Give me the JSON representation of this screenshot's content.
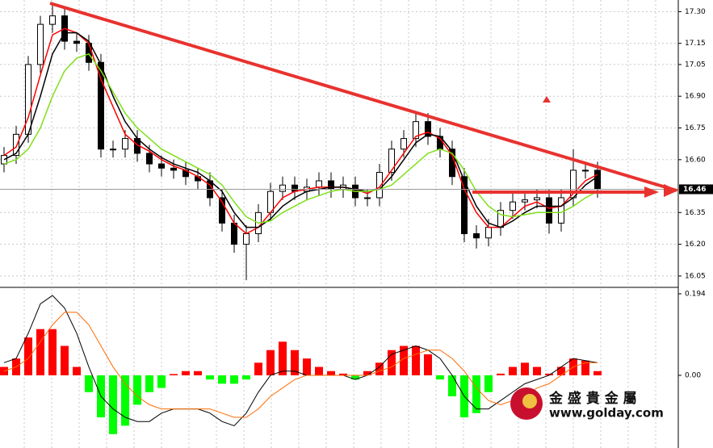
{
  "chart_data": [
    {
      "type": "candlestick",
      "open": [
        16.58,
        16.62,
        16.72,
        17.05,
        17.24,
        17.28,
        17.16,
        17.15,
        17.06,
        16.65,
        16.65,
        16.7,
        16.63,
        16.58,
        16.56,
        16.55,
        16.52,
        16.5,
        16.42,
        16.3,
        16.2,
        16.25,
        16.35,
        16.45,
        16.48,
        16.45,
        16.47,
        16.5,
        16.46,
        16.48,
        16.42,
        16.42,
        16.54,
        16.65,
        16.7,
        16.78,
        16.71,
        16.65,
        16.52,
        16.25,
        16.23,
        16.28,
        16.36,
        16.4,
        16.41,
        16.42,
        16.3,
        16.42,
        16.55,
        16.55
      ],
      "high": [
        16.66,
        16.76,
        17.09,
        17.28,
        17.33,
        17.32,
        17.2,
        17.19,
        17.1,
        16.69,
        16.74,
        16.74,
        16.67,
        16.62,
        16.6,
        16.59,
        16.56,
        16.54,
        16.46,
        16.34,
        16.29,
        16.39,
        16.49,
        16.52,
        16.52,
        16.51,
        16.54,
        16.54,
        16.52,
        16.52,
        16.46,
        16.58,
        16.69,
        16.74,
        16.82,
        16.82,
        16.75,
        16.69,
        16.56,
        16.29,
        16.32,
        16.4,
        16.44,
        16.45,
        16.46,
        16.46,
        16.46,
        16.65,
        16.59,
        16.59
      ],
      "low": [
        16.54,
        16.58,
        16.68,
        17.01,
        17.2,
        17.12,
        17.11,
        17.02,
        16.61,
        16.61,
        16.61,
        16.59,
        16.54,
        16.52,
        16.51,
        16.48,
        16.46,
        16.38,
        16.26,
        16.16,
        16.03,
        16.21,
        16.31,
        16.41,
        16.41,
        16.41,
        16.43,
        16.42,
        16.42,
        16.38,
        16.38,
        16.38,
        16.5,
        16.61,
        16.66,
        16.67,
        16.61,
        16.48,
        16.21,
        16.18,
        16.19,
        16.24,
        16.32,
        16.36,
        16.37,
        16.25,
        16.26,
        16.38,
        16.51,
        16.42
      ],
      "close": [
        16.62,
        16.72,
        17.05,
        17.24,
        17.28,
        17.16,
        17.15,
        17.06,
        16.65,
        16.65,
        16.7,
        16.63,
        16.58,
        16.56,
        16.55,
        16.52,
        16.5,
        16.42,
        16.3,
        16.2,
        16.25,
        16.35,
        16.45,
        16.48,
        16.45,
        16.47,
        16.5,
        16.46,
        16.48,
        16.42,
        16.42,
        16.54,
        16.65,
        16.7,
        16.78,
        16.71,
        16.65,
        16.52,
        16.25,
        16.23,
        16.28,
        16.36,
        16.4,
        16.41,
        16.42,
        16.3,
        16.42,
        16.55,
        16.55,
        16.46
      ],
      "up_color": "#ffffff",
      "down_color": "#000000",
      "series": [
        {
          "color": "#ff0000",
          "values": [
            16.62,
            16.66,
            16.8,
            17.0,
            17.19,
            17.22,
            17.2,
            17.15,
            16.98,
            16.85,
            16.72,
            16.67,
            16.64,
            16.6,
            16.57,
            16.55,
            16.52,
            16.48,
            16.4,
            16.3,
            16.25,
            16.28,
            16.35,
            16.42,
            16.45,
            16.46,
            16.47,
            16.47,
            16.47,
            16.46,
            16.44,
            16.47,
            16.55,
            16.63,
            16.71,
            16.73,
            16.7,
            16.62,
            16.46,
            16.35,
            16.28,
            16.28,
            16.33,
            16.38,
            16.4,
            16.37,
            16.38,
            16.44,
            16.5,
            16.53
          ]
        },
        {
          "color": "#000000",
          "values": [
            16.6,
            16.63,
            16.72,
            16.9,
            17.1,
            17.2,
            17.2,
            17.16,
            17.05,
            16.9,
            16.78,
            16.7,
            16.65,
            16.61,
            16.58,
            16.56,
            16.54,
            16.5,
            16.45,
            16.35,
            16.28,
            16.28,
            16.32,
            16.38,
            16.42,
            16.45,
            16.46,
            16.47,
            16.47,
            16.46,
            16.45,
            16.46,
            16.52,
            16.6,
            16.68,
            16.72,
            16.71,
            16.64,
            16.5,
            16.38,
            16.3,
            16.28,
            16.31,
            16.35,
            16.38,
            16.38,
            16.38,
            16.42,
            16.48,
            16.52
          ]
        },
        {
          "color": "#7fe01a",
          "values": [
            16.58,
            16.6,
            16.65,
            16.75,
            16.9,
            17.02,
            17.08,
            17.1,
            17.02,
            16.92,
            16.82,
            16.75,
            16.7,
            16.65,
            16.62,
            16.59,
            16.56,
            16.53,
            16.48,
            16.4,
            16.33,
            16.3,
            16.31,
            16.35,
            16.38,
            16.41,
            16.43,
            16.45,
            16.46,
            16.45,
            16.45,
            16.46,
            16.48,
            16.53,
            16.58,
            16.63,
            16.65,
            16.63,
            16.55,
            16.45,
            16.38,
            16.34,
            16.33,
            16.34,
            16.35,
            16.35,
            16.35,
            16.38,
            16.42,
            16.45
          ]
        }
      ],
      "current_price": 16.46,
      "ylim": [
        16.0,
        17.355
      ],
      "yticks": [
        {
          "value": 17.3,
          "label": "17.30"
        },
        17.15,
        17.05,
        {
          "value": 16.9,
          "label": "16.90"
        },
        16.75,
        {
          "value": 16.6,
          "label": "16.60"
        },
        16.35,
        {
          "value": 16.2,
          "label": "16.20"
        },
        16.05
      ],
      "grid": true
    },
    {
      "type": "macd",
      "histogram": {
        "positive_color": "#ff0000",
        "negative_color": "#00ff00",
        "values": [
          0.02,
          0.04,
          0.09,
          0.11,
          0.11,
          0.07,
          0.02,
          -0.04,
          -0.1,
          -0.14,
          -0.12,
          -0.07,
          -0.04,
          -0.03,
          0.003,
          0.01,
          0.01,
          -0.01,
          -0.02,
          -0.02,
          -0.01,
          0.03,
          0.06,
          0.08,
          0.06,
          0.04,
          0.02,
          0.01,
          0.004,
          -0.01,
          0.01,
          0.03,
          0.06,
          0.07,
          0.07,
          0.05,
          -0.01,
          -0.05,
          -0.1,
          -0.09,
          -0.04,
          0.004,
          0.02,
          0.03,
          0.02,
          0.004,
          0.02,
          0.04,
          0.035,
          0.01
        ]
      },
      "series": [
        {
          "color": "#000000",
          "values": [
            0.03,
            0.04,
            0.1,
            0.17,
            0.19,
            0.16,
            0.1,
            0.02,
            -0.05,
            -0.08,
            -0.1,
            -0.11,
            -0.11,
            -0.09,
            -0.08,
            -0.08,
            -0.08,
            -0.09,
            -0.11,
            -0.12,
            -0.09,
            -0.04,
            0.0,
            0.01,
            0.01,
            0.0,
            0.0,
            0.0,
            0.0,
            -0.01,
            0.0,
            0.02,
            0.05,
            0.06,
            0.07,
            0.06,
            0.04,
            0.0,
            -0.05,
            -0.08,
            -0.08,
            -0.06,
            -0.04,
            -0.02,
            -0.01,
            0.0,
            0.02,
            0.04,
            0.035,
            0.03
          ]
        },
        {
          "color": "#ff6a00",
          "values": [
            0.01,
            0.02,
            0.04,
            0.08,
            0.12,
            0.15,
            0.15,
            0.12,
            0.07,
            0.02,
            -0.02,
            -0.05,
            -0.07,
            -0.08,
            -0.08,
            -0.08,
            -0.08,
            -0.08,
            -0.09,
            -0.1,
            -0.1,
            -0.08,
            -0.05,
            -0.03,
            -0.01,
            0.0,
            0.0,
            0.0,
            0.0,
            0.0,
            0.0,
            0.01,
            0.02,
            0.04,
            0.05,
            0.06,
            0.06,
            0.04,
            0.01,
            -0.03,
            -0.06,
            -0.07,
            -0.06,
            -0.05,
            -0.03,
            -0.02,
            0.0,
            0.02,
            0.03,
            0.03
          ]
        }
      ],
      "ylim": [
        -0.173,
        0.2074
      ],
      "yticks": [
        0.194,
        {
          "value": 0,
          "label": "0.00"
        }
      ],
      "grid": true
    }
  ],
  "watermark": {
    "name": "金 盛 貴 金 屬",
    "url": "www.golday.com"
  }
}
